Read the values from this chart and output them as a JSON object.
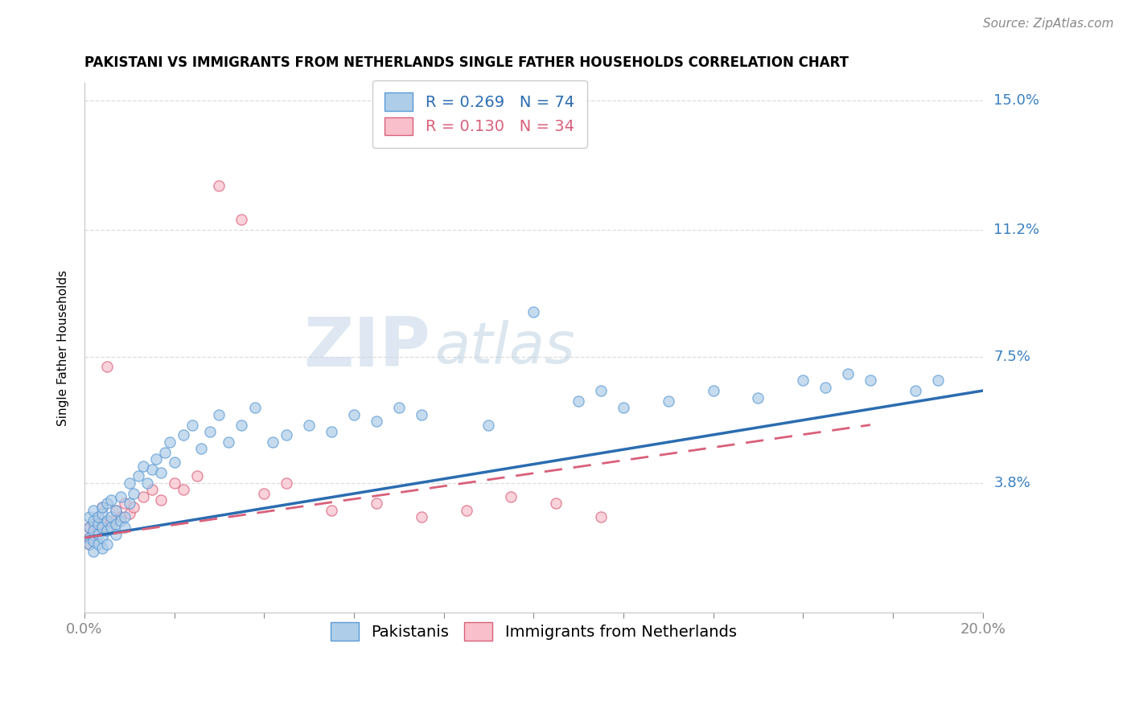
{
  "title": "PAKISTANI VS IMMIGRANTS FROM NETHERLANDS SINGLE FATHER HOUSEHOLDS CORRELATION CHART",
  "source": "Source: ZipAtlas.com",
  "ylabel": "Single Father Households",
  "xlim": [
    0.0,
    0.2
  ],
  "ylim": [
    0.0,
    0.155
  ],
  "ytick_positions": [
    0.038,
    0.075,
    0.112,
    0.15
  ],
  "ytick_labels": [
    "3.8%",
    "7.5%",
    "11.2%",
    "15.0%"
  ],
  "series1_name": "Pakistanis",
  "series1_color": "#aecde8",
  "series1_edge": "#5b9bd5",
  "series1_line_color": "#2b6cb0",
  "series1_R": 0.269,
  "series1_N": 74,
  "series2_name": "Immigrants from Netherlands",
  "series2_color": "#f9c0cb",
  "series2_edge": "#d9607a",
  "series2_line_color": "#d9607a",
  "series2_R": 0.13,
  "series2_N": 34,
  "watermark_ZIP": "ZIP",
  "watermark_atlas": "atlas",
  "legend_text_color1": "#2b6cb0",
  "legend_text_color2": "#d9607a",
  "axis_color": "#cccccc",
  "grid_color": "#dddddd",
  "ytick_label_color": "#3a80c0",
  "title_fontsize": 12,
  "tick_fontsize": 13,
  "source_fontsize": 11,
  "ylabel_fontsize": 11,
  "legend_fontsize": 14,
  "pakistanis_x": [
    0.001,
    0.001,
    0.001,
    0.001,
    0.002,
    0.002,
    0.002,
    0.002,
    0.002,
    0.003,
    0.003,
    0.003,
    0.003,
    0.004,
    0.004,
    0.004,
    0.004,
    0.004,
    0.005,
    0.005,
    0.005,
    0.005,
    0.006,
    0.006,
    0.006,
    0.007,
    0.007,
    0.007,
    0.008,
    0.008,
    0.009,
    0.009,
    0.01,
    0.01,
    0.011,
    0.012,
    0.013,
    0.014,
    0.015,
    0.016,
    0.017,
    0.018,
    0.019,
    0.02,
    0.022,
    0.024,
    0.026,
    0.028,
    0.03,
    0.032,
    0.035,
    0.038,
    0.042,
    0.045,
    0.05,
    0.055,
    0.06,
    0.065,
    0.07,
    0.075,
    0.09,
    0.1,
    0.11,
    0.115,
    0.12,
    0.13,
    0.14,
    0.15,
    0.16,
    0.165,
    0.17,
    0.175,
    0.185,
    0.19
  ],
  "pakistanis_y": [
    0.025,
    0.028,
    0.022,
    0.02,
    0.027,
    0.024,
    0.021,
    0.03,
    0.018,
    0.026,
    0.023,
    0.02,
    0.028,
    0.025,
    0.022,
    0.029,
    0.019,
    0.031,
    0.027,
    0.024,
    0.02,
    0.032,
    0.028,
    0.025,
    0.033,
    0.026,
    0.023,
    0.03,
    0.027,
    0.034,
    0.028,
    0.025,
    0.032,
    0.038,
    0.035,
    0.04,
    0.043,
    0.038,
    0.042,
    0.045,
    0.041,
    0.047,
    0.05,
    0.044,
    0.052,
    0.055,
    0.048,
    0.053,
    0.058,
    0.05,
    0.055,
    0.06,
    0.05,
    0.052,
    0.055,
    0.053,
    0.058,
    0.056,
    0.06,
    0.058,
    0.055,
    0.088,
    0.062,
    0.065,
    0.06,
    0.062,
    0.065,
    0.063,
    0.068,
    0.066,
    0.07,
    0.068,
    0.065,
    0.068
  ],
  "netherlands_x": [
    0.001,
    0.001,
    0.001,
    0.002,
    0.002,
    0.003,
    0.003,
    0.004,
    0.004,
    0.005,
    0.005,
    0.006,
    0.007,
    0.008,
    0.009,
    0.01,
    0.011,
    0.013,
    0.015,
    0.017,
    0.02,
    0.022,
    0.025,
    0.03,
    0.035,
    0.04,
    0.045,
    0.055,
    0.065,
    0.075,
    0.085,
    0.095,
    0.105,
    0.115
  ],
  "netherlands_y": [
    0.025,
    0.022,
    0.02,
    0.026,
    0.023,
    0.028,
    0.024,
    0.026,
    0.031,
    0.072,
    0.025,
    0.027,
    0.03,
    0.028,
    0.032,
    0.029,
    0.031,
    0.034,
    0.036,
    0.033,
    0.038,
    0.036,
    0.04,
    0.125,
    0.115,
    0.035,
    0.038,
    0.03,
    0.032,
    0.028,
    0.03,
    0.034,
    0.032,
    0.028
  ],
  "blue_line_x": [
    0.0,
    0.2
  ],
  "blue_line_y": [
    0.022,
    0.065
  ],
  "pink_line_x": [
    0.0,
    0.175
  ],
  "pink_line_y": [
    0.022,
    0.055
  ]
}
